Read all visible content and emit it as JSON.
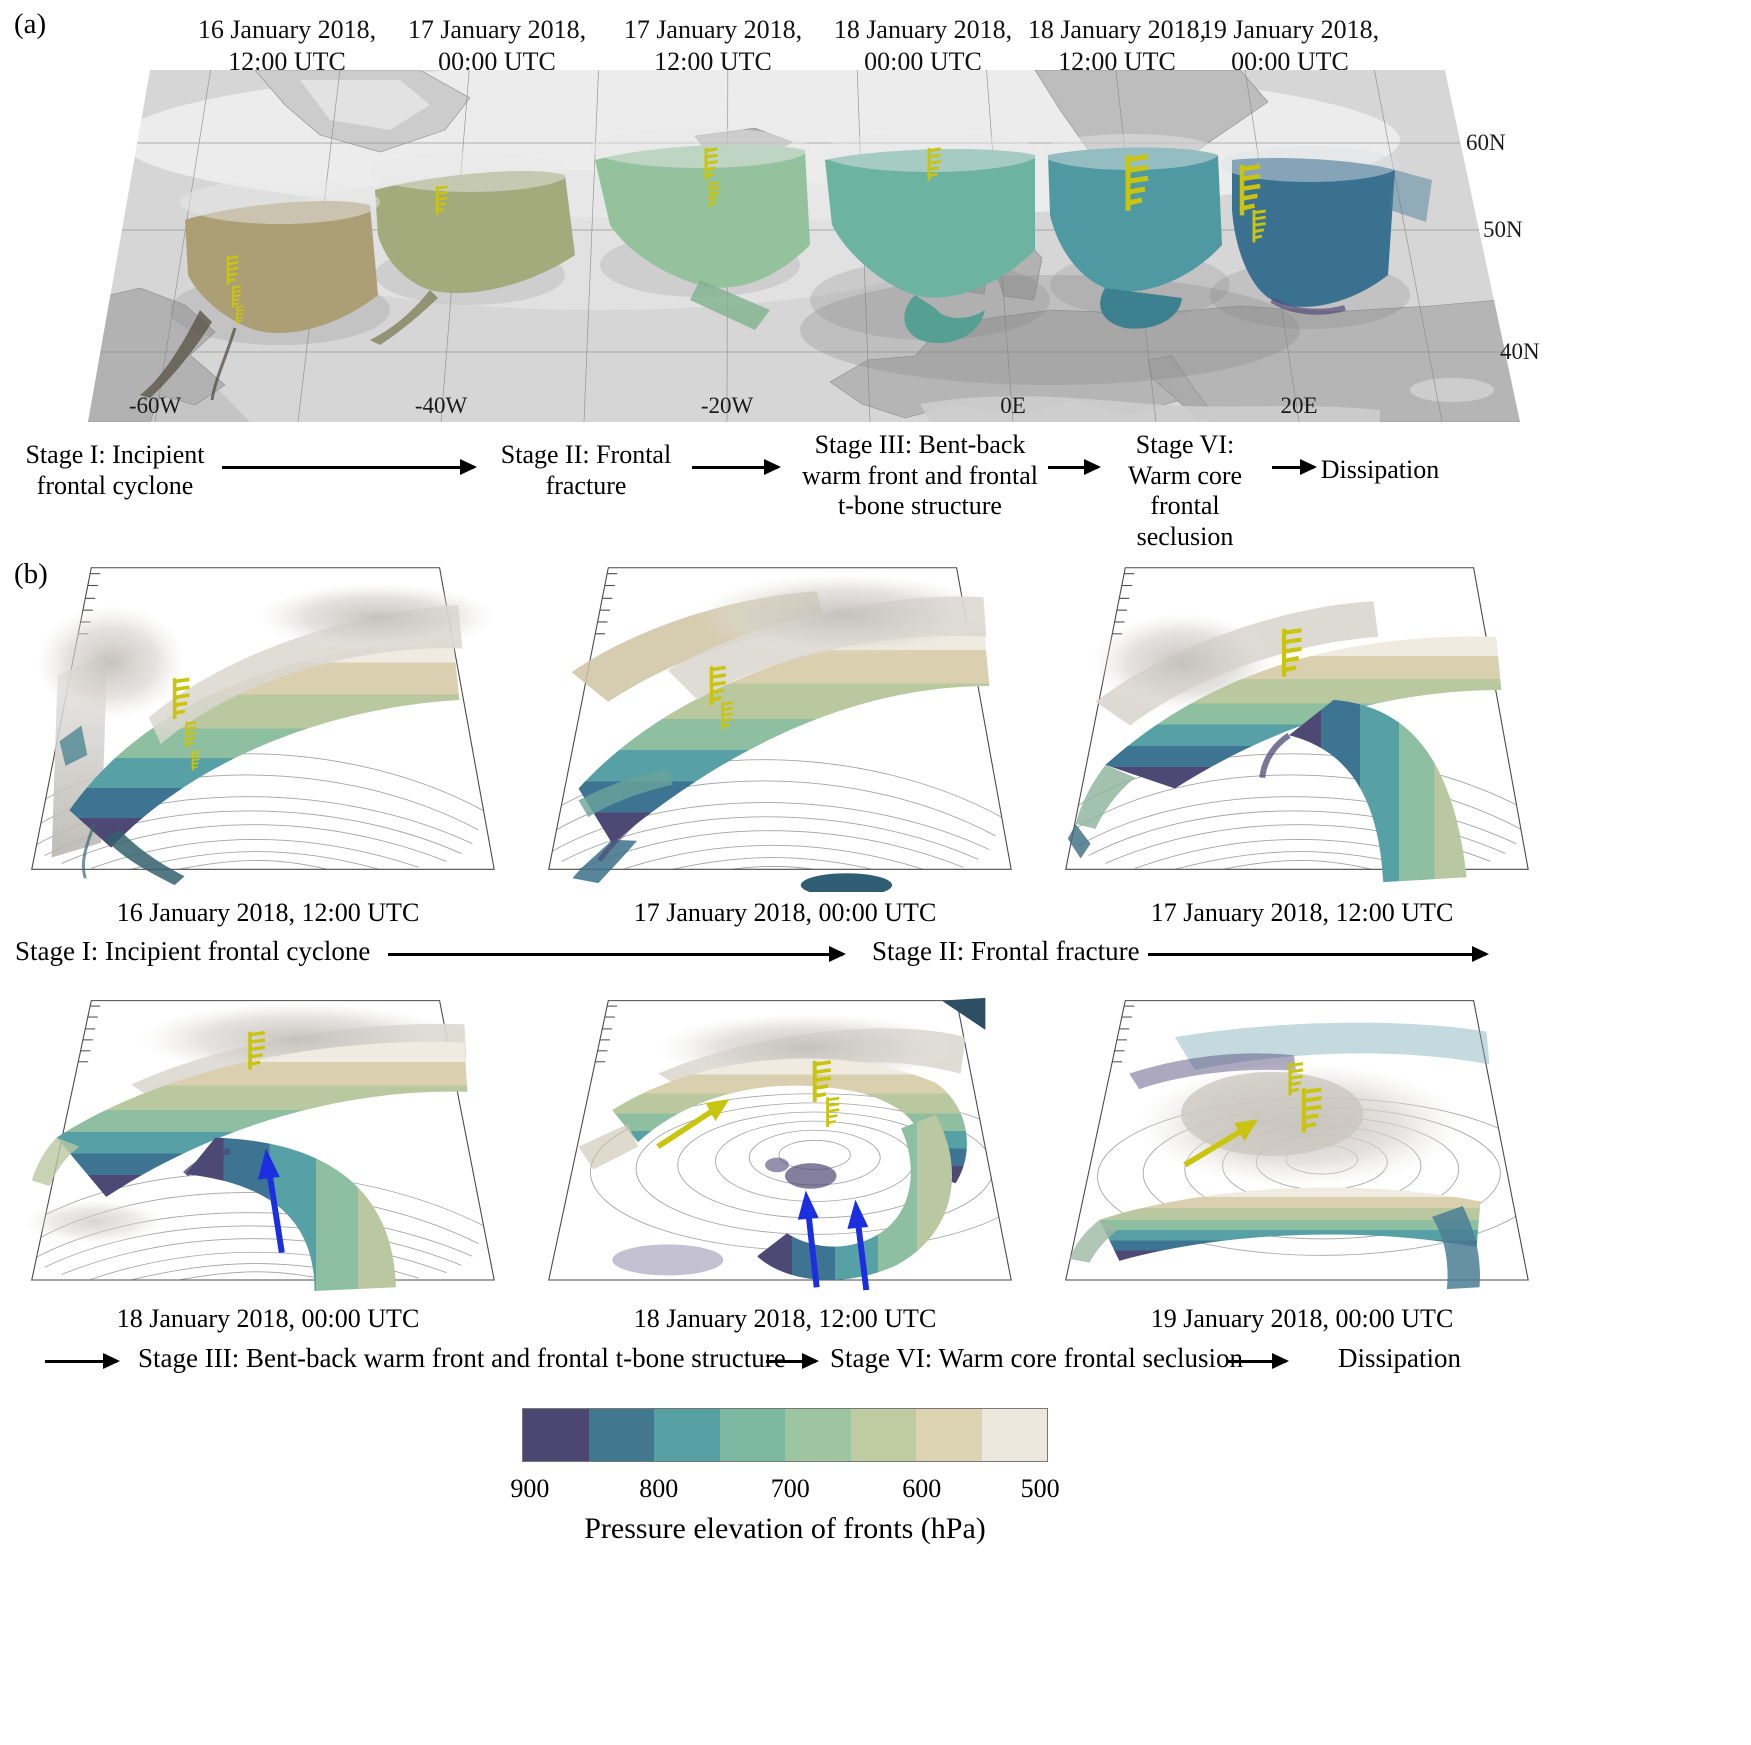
{
  "figure": {
    "panel_a_label": "(a)",
    "panel_b_label": "(b)"
  },
  "panel_a": {
    "timestamps": [
      {
        "line1": "16 January 2018,",
        "line2": "12:00 UTC"
      },
      {
        "line1": "17 January 2018,",
        "line2": "00:00 UTC"
      },
      {
        "line1": "17 January 2018,",
        "line2": "12:00 UTC"
      },
      {
        "line1": "18 January 2018,",
        "line2": "00:00 UTC"
      },
      {
        "line1": "18 January 2018,",
        "line2": "12:00 UTC"
      },
      {
        "line1": "19 January 2018,",
        "line2": "00:00 UTC"
      }
    ],
    "map": {
      "lat_labels": [
        "60N",
        "50N",
        "40N"
      ],
      "lon_labels": [
        "-60W",
        "-40W",
        "-20W",
        "0E",
        "20E"
      ]
    },
    "stages": [
      "Stage I: Incipient frontal cyclone",
      "Stage II: Frontal fracture",
      "Stage III: Bent-back warm front and frontal t-bone structure",
      "Stage VI: Warm core frontal seclusion",
      "Dissipation"
    ]
  },
  "panel_b": {
    "row1": {
      "captions": [
        "16 January 2018, 12:00 UTC",
        "17 January 2018, 00:00 UTC",
        "17 January 2018, 12:00 UTC"
      ],
      "stages": [
        "Stage I: Incipient frontal cyclone",
        "Stage II: Frontal fracture"
      ]
    },
    "row2": {
      "captions": [
        "18 January 2018, 00:00 UTC",
        "18 January 2018, 12:00 UTC",
        "19 January 2018, 00:00 UTC"
      ],
      "stages": [
        "Stage III: Bent-back warm front and frontal t-bone structure",
        "Stage VI: Warm core frontal seclusion",
        "Dissipation"
      ]
    }
  },
  "colorbar": {
    "title": "Pressure elevation of fronts (hPa)",
    "tick_labels": [
      "900",
      "800",
      "700",
      "600",
      "500"
    ],
    "segment_colors": [
      "#4c4673",
      "#41788f",
      "#57a1a5",
      "#7cb8a2",
      "#9cc5a0",
      "#bfcba1",
      "#dcd3b3",
      "#ece7dc"
    ],
    "range_hpa": [
      900,
      500
    ]
  },
  "chart_data": {
    "type": "heatmap",
    "title": "Pressure elevation of fronts (hPa)",
    "colorbar": {
      "tick_labels": [
        900,
        800,
        700,
        600,
        500
      ],
      "segment_edges_hpa": [
        900,
        850,
        800,
        750,
        700,
        650,
        600,
        550,
        500
      ],
      "colors": [
        "#4c4673",
        "#41788f",
        "#57a1a5",
        "#7cb8a2",
        "#9cc5a0",
        "#bfcba1",
        "#dcd3b3",
        "#ece7dc"
      ],
      "orientation": "horizontal"
    }
  }
}
